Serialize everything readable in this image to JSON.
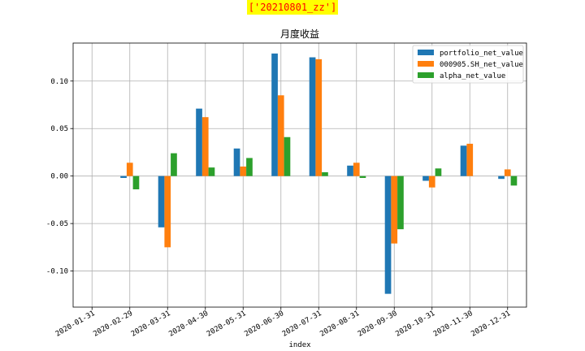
{
  "header_tag": "['20210801_zz']",
  "chart_data": {
    "type": "bar",
    "title": "月度收益",
    "xlabel": "index",
    "ylabel": "",
    "ylim": [
      -0.138,
      0.14
    ],
    "yticks": [
      -0.1,
      -0.05,
      0.0,
      0.05,
      0.1
    ],
    "ytick_labels": [
      "-0.10",
      "-0.05",
      "0.00",
      "0.05",
      "0.10"
    ],
    "grid": true,
    "legend_position": "top-right",
    "categories": [
      "2020-01-31",
      "2020-02-29",
      "2020-03-31",
      "2020-04-30",
      "2020-05-31",
      "2020-06-30",
      "2020-07-31",
      "2020-08-31",
      "2020-09-30",
      "2020-10-31",
      "2020-11-30",
      "2020-12-31"
    ],
    "series": [
      {
        "name": "portfolio_net_value",
        "color": "#1f77b4",
        "values": [
          0,
          -0.002,
          -0.054,
          0.071,
          0.029,
          0.129,
          0.125,
          0.011,
          -0.124,
          -0.005,
          0.032,
          -0.003
        ]
      },
      {
        "name": "000905.SH_net_value",
        "color": "#ff7f0e",
        "values": [
          0,
          0.014,
          -0.075,
          0.062,
          0.01,
          0.085,
          0.123,
          0.014,
          -0.071,
          -0.012,
          0.034,
          0.007
        ]
      },
      {
        "name": "alpha_net_value",
        "color": "#2ca02c",
        "values": [
          0,
          -0.014,
          0.024,
          0.009,
          0.019,
          0.041,
          0.004,
          -0.002,
          -0.056,
          0.008,
          0,
          -0.01
        ]
      }
    ]
  }
}
